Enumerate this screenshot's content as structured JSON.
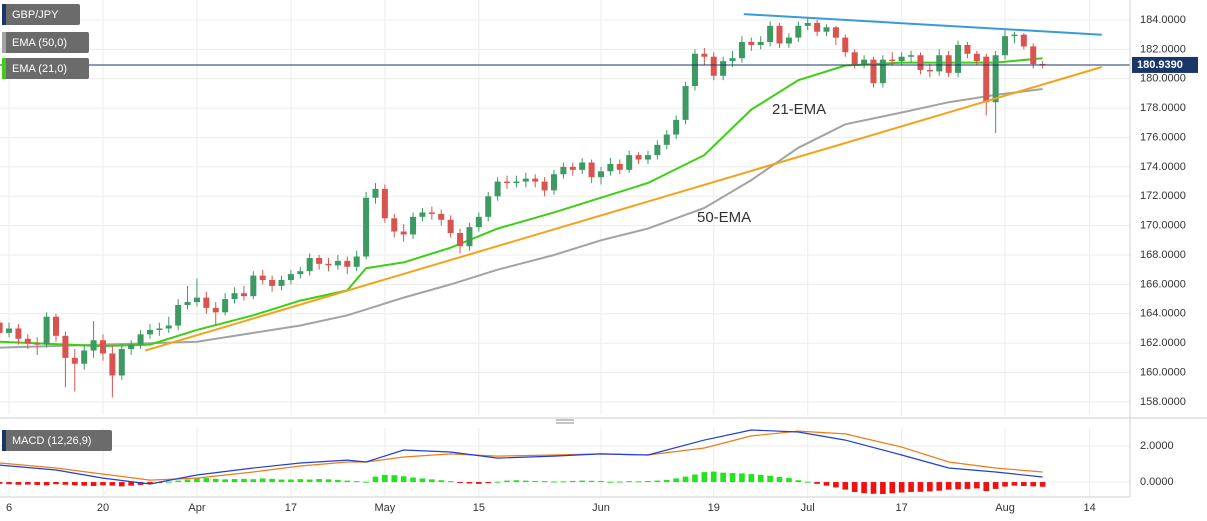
{
  "chart_data": {
    "type": "candlestick",
    "symbol": "GBP/JPY",
    "symbol_color": "#1a3668",
    "up_color": "#3c9a62",
    "down_color": "#d9534f",
    "x": [
      0,
      1,
      2,
      3,
      4,
      5,
      6,
      7,
      8,
      9,
      10,
      11,
      12,
      13,
      14,
      15,
      16,
      17,
      18,
      19,
      20,
      21,
      22,
      23,
      24,
      25,
      26,
      27,
      28,
      29,
      30,
      31,
      32,
      33,
      34,
      35,
      36,
      37,
      38,
      39,
      40,
      41,
      42,
      43,
      44,
      45,
      46,
      47,
      48,
      49,
      50,
      51,
      52,
      53,
      54,
      55,
      56,
      57,
      58,
      59,
      60,
      61,
      62,
      63,
      64,
      65,
      66,
      67,
      68,
      69,
      70,
      71,
      72,
      73,
      74,
      75,
      76,
      77,
      78,
      79,
      80,
      81,
      82,
      83,
      84,
      85,
      86,
      87,
      88,
      89,
      90,
      91,
      92,
      93,
      94,
      95,
      96,
      97,
      98,
      99,
      100,
      101,
      102,
      103,
      104,
      105,
      106,
      107,
      108,
      109,
      110,
      111
    ],
    "candles": [
      [
        163.4,
        163.6,
        162.3,
        162.7
      ],
      [
        162.7,
        163.4,
        162.4,
        163.0
      ],
      [
        163.0,
        163.3,
        161.9,
        162.3
      ],
      [
        162.3,
        162.6,
        161.6,
        162.0
      ],
      [
        162.0,
        162.4,
        161.2,
        161.9
      ],
      [
        161.9,
        164.1,
        161.7,
        163.8
      ],
      [
        163.8,
        164.0,
        162.1,
        162.5
      ],
      [
        162.5,
        162.8,
        159.0,
        161.0
      ],
      [
        161.0,
        161.6,
        158.7,
        160.6
      ],
      [
        160.6,
        161.9,
        160.2,
        161.5
      ],
      [
        161.5,
        163.5,
        161.0,
        162.2
      ],
      [
        162.2,
        162.6,
        160.8,
        161.3
      ],
      [
        161.3,
        161.8,
        158.3,
        159.8
      ],
      [
        159.8,
        161.9,
        159.5,
        161.6
      ],
      [
        161.6,
        162.2,
        161.2,
        161.9
      ],
      [
        161.9,
        162.9,
        161.6,
        162.6
      ],
      [
        162.6,
        163.3,
        162.3,
        162.9
      ],
      [
        162.9,
        163.4,
        162.5,
        163.0
      ],
      [
        163.0,
        163.8,
        162.7,
        163.2
      ],
      [
        163.2,
        165.0,
        162.9,
        164.6
      ],
      [
        164.6,
        165.9,
        164.3,
        164.8
      ],
      [
        164.8,
        166.4,
        164.5,
        165.1
      ],
      [
        165.1,
        165.5,
        164.0,
        164.4
      ],
      [
        164.4,
        164.8,
        163.2,
        164.1
      ],
      [
        164.1,
        165.4,
        163.9,
        165.0
      ],
      [
        165.0,
        165.8,
        164.7,
        165.4
      ],
      [
        165.4,
        165.9,
        164.9,
        165.2
      ],
      [
        165.2,
        166.9,
        165.0,
        166.6
      ],
      [
        166.6,
        167.0,
        166.0,
        166.3
      ],
      [
        166.3,
        166.6,
        165.5,
        165.9
      ],
      [
        165.9,
        166.6,
        165.6,
        166.3
      ],
      [
        166.3,
        167.0,
        166.0,
        166.7
      ],
      [
        166.7,
        167.2,
        166.4,
        166.9
      ],
      [
        166.9,
        168.1,
        166.6,
        167.8
      ],
      [
        167.8,
        168.0,
        167.0,
        167.4
      ],
      [
        167.4,
        167.8,
        166.9,
        167.3
      ],
      [
        167.3,
        168.0,
        167.0,
        167.6
      ],
      [
        167.6,
        167.9,
        166.7,
        167.2
      ],
      [
        167.2,
        168.3,
        166.9,
        167.9
      ],
      [
        167.9,
        172.3,
        167.7,
        171.9
      ],
      [
        171.9,
        172.9,
        171.5,
        172.5
      ],
      [
        172.5,
        172.8,
        170.2,
        170.5
      ],
      [
        170.5,
        170.8,
        169.2,
        169.6
      ],
      [
        169.6,
        170.1,
        168.9,
        169.4
      ],
      [
        169.4,
        170.9,
        169.1,
        170.6
      ],
      [
        170.6,
        171.2,
        170.3,
        170.9
      ],
      [
        170.9,
        171.3,
        170.4,
        170.8
      ],
      [
        170.8,
        171.1,
        170.0,
        170.4
      ],
      [
        170.4,
        170.7,
        169.2,
        169.5
      ],
      [
        169.5,
        169.8,
        168.1,
        168.6
      ],
      [
        168.6,
        170.2,
        168.3,
        169.9
      ],
      [
        169.9,
        170.9,
        169.6,
        170.6
      ],
      [
        170.6,
        172.3,
        170.3,
        172.0
      ],
      [
        172.0,
        173.3,
        171.7,
        173.0
      ],
      [
        173.0,
        173.4,
        172.5,
        172.9
      ],
      [
        172.9,
        173.4,
        172.6,
        173.0
      ],
      [
        173.0,
        173.6,
        172.6,
        173.2
      ],
      [
        173.2,
        173.5,
        172.6,
        173.0
      ],
      [
        173.0,
        173.3,
        172.0,
        172.4
      ],
      [
        172.4,
        173.8,
        172.1,
        173.5
      ],
      [
        173.5,
        174.3,
        173.2,
        174.0
      ],
      [
        174.0,
        174.3,
        173.4,
        173.8
      ],
      [
        173.8,
        174.6,
        173.5,
        174.3
      ],
      [
        174.3,
        174.5,
        172.9,
        173.3
      ],
      [
        173.3,
        174.0,
        172.8,
        173.7
      ],
      [
        173.7,
        174.6,
        173.4,
        174.2
      ],
      [
        174.2,
        174.5,
        173.5,
        173.8
      ],
      [
        173.8,
        175.1,
        173.6,
        174.8
      ],
      [
        174.8,
        175.0,
        174.2,
        174.5
      ],
      [
        174.5,
        175.1,
        174.2,
        174.8
      ],
      [
        174.8,
        175.8,
        174.5,
        175.5
      ],
      [
        175.5,
        176.5,
        175.2,
        176.2
      ],
      [
        176.2,
        177.5,
        175.9,
        177.2
      ],
      [
        177.2,
        179.8,
        176.9,
        179.5
      ],
      [
        179.5,
        182.0,
        179.2,
        181.7
      ],
      [
        181.7,
        182.1,
        180.9,
        181.5
      ],
      [
        181.5,
        181.8,
        179.9,
        180.2
      ],
      [
        180.2,
        181.5,
        179.9,
        181.2
      ],
      [
        181.2,
        181.9,
        180.8,
        181.4
      ],
      [
        181.4,
        182.9,
        181.1,
        182.5
      ],
      [
        182.5,
        182.8,
        181.9,
        182.3
      ],
      [
        182.3,
        182.9,
        182.0,
        182.5
      ],
      [
        182.5,
        183.9,
        182.2,
        183.6
      ],
      [
        183.6,
        183.8,
        182.1,
        182.4
      ],
      [
        182.4,
        183.1,
        182.1,
        182.8
      ],
      [
        182.8,
        183.9,
        182.5,
        183.6
      ],
      [
        183.6,
        184.1,
        183.3,
        183.8
      ],
      [
        183.8,
        184.0,
        182.9,
        183.2
      ],
      [
        183.2,
        183.7,
        182.9,
        183.5
      ],
      [
        183.5,
        183.6,
        182.3,
        182.8
      ],
      [
        182.8,
        183.0,
        181.5,
        181.8
      ],
      [
        181.8,
        182.0,
        180.7,
        181.0
      ],
      [
        181.0,
        181.6,
        180.7,
        181.3
      ],
      [
        181.3,
        181.5,
        179.4,
        179.7
      ],
      [
        179.7,
        181.6,
        179.4,
        181.3
      ],
      [
        181.3,
        181.8,
        180.9,
        181.2
      ],
      [
        181.2,
        181.8,
        180.9,
        181.5
      ],
      [
        181.5,
        181.9,
        181.1,
        181.6
      ],
      [
        181.6,
        181.8,
        180.3,
        180.6
      ],
      [
        180.6,
        181.0,
        180.1,
        180.5
      ],
      [
        180.5,
        182.0,
        180.2,
        181.6
      ],
      [
        181.6,
        181.9,
        180.1,
        180.4
      ],
      [
        180.4,
        182.6,
        180.1,
        182.3
      ],
      [
        182.3,
        182.5,
        181.4,
        181.7
      ],
      [
        181.7,
        181.9,
        180.9,
        181.2
      ],
      [
        181.5,
        181.7,
        177.5,
        178.4
      ],
      [
        178.4,
        181.9,
        176.3,
        181.6
      ],
      [
        181.6,
        183.3,
        181.3,
        182.9
      ],
      [
        182.9,
        183.2,
        182.4,
        183.0
      ],
      [
        183.0,
        183.1,
        182.0,
        182.2
      ],
      [
        182.2,
        182.4,
        180.7,
        181.0
      ],
      [
        181.0,
        181.2,
        180.7,
        180.9
      ]
    ],
    "series": [
      {
        "name": "EMA (50,0)",
        "label": "50-EMA",
        "color": "#a3a3a3",
        "x": [
          0,
          11,
          16,
          21,
          27,
          32,
          37,
          39,
          43,
          48,
          53,
          59,
          64,
          69,
          75,
          80,
          85,
          90,
          96,
          101,
          106,
          111
        ],
        "values": [
          161.7,
          161.9,
          162.0,
          162.1,
          162.7,
          163.2,
          163.9,
          164.3,
          165.1,
          166.0,
          167.0,
          168.0,
          169.0,
          169.8,
          171.2,
          173.1,
          175.3,
          176.9,
          177.7,
          178.4,
          178.9,
          179.3
        ]
      },
      {
        "name": "EMA (21,0)",
        "label": "21-EMA",
        "color": "#3ccf12",
        "x": [
          0,
          11,
          16,
          21,
          27,
          32,
          37,
          39,
          43,
          48,
          53,
          59,
          64,
          69,
          75,
          80,
          85,
          90,
          96,
          101,
          106,
          111
        ],
        "values": [
          162.1,
          161.8,
          161.9,
          162.9,
          163.9,
          164.9,
          165.6,
          167.1,
          167.5,
          168.5,
          169.8,
          170.9,
          171.9,
          172.9,
          174.8,
          177.9,
          179.9,
          180.9,
          181.1,
          181.1,
          181.1,
          181.4
        ]
      }
    ],
    "trendlines": [
      {
        "color": "#f5a21b",
        "x": [
          15.5,
          117.3
        ],
        "values": [
          161.5,
          180.8
        ]
      },
      {
        "color": "#3a9ad9",
        "x": [
          79.2,
          117.3
        ],
        "values": [
          184.4,
          183.0
        ]
      }
    ],
    "last_price": {
      "value": 180.939,
      "label": "180.9390"
    },
    "last_price_color": "#1a3668",
    "xlim": [
      0.04,
      120.3
    ],
    "xticks": [
      {
        "value": 1,
        "label": "6"
      },
      {
        "value": 11,
        "label": "20"
      },
      {
        "value": 21,
        "label": "Apr"
      },
      {
        "value": 31,
        "label": "17"
      },
      {
        "value": 41,
        "label": "May"
      },
      {
        "value": 51,
        "label": "15"
      },
      {
        "value": 64,
        "label": "Jun"
      },
      {
        "value": 76,
        "label": "19"
      },
      {
        "value": 86,
        "label": "Jul"
      },
      {
        "value": 96,
        "label": "17"
      },
      {
        "value": 107,
        "label": "Aug"
      },
      {
        "value": 116,
        "label": "14"
      }
    ],
    "ylim": [
      157.11,
      185.36
    ],
    "yticks": [
      {
        "value": 158,
        "label": "158.0000"
      },
      {
        "value": 160,
        "label": "160.0000"
      },
      {
        "value": 162,
        "label": "162.0000"
      },
      {
        "value": 164,
        "label": "164.0000"
      },
      {
        "value": 166,
        "label": "166.0000"
      },
      {
        "value": 168,
        "label": "168.0000"
      },
      {
        "value": 170,
        "label": "170.0000"
      },
      {
        "value": 172,
        "label": "172.0000"
      },
      {
        "value": 174,
        "label": "174.0000"
      },
      {
        "value": 176,
        "label": "176.0000"
      },
      {
        "value": 178,
        "label": "178.0000"
      },
      {
        "value": 180,
        "label": "180.0000"
      },
      {
        "value": 182,
        "label": "182.0000"
      },
      {
        "value": 184,
        "label": "184.0000"
      }
    ],
    "grid": true,
    "macd": {
      "name": "MACD (12,26,9)",
      "color": "#1a3668",
      "ylim": [
        -0.83,
        3.0
      ],
      "yticks": [
        {
          "value": 0,
          "label": "0.0000"
        },
        {
          "value": 2,
          "label": "2.0000"
        }
      ],
      "x": [
        0,
        6,
        11,
        16,
        21,
        27,
        32,
        37,
        39,
        43,
        48,
        53,
        59,
        64,
        69,
        75,
        80,
        85,
        90,
        96,
        101,
        106,
        111
      ],
      "macd_line": {
        "color": "#1f3fd6",
        "values": [
          0.94,
          0.67,
          0.22,
          -0.11,
          0.39,
          0.78,
          1.06,
          1.22,
          1.11,
          1.78,
          1.67,
          1.33,
          1.44,
          1.56,
          1.5,
          2.33,
          2.89,
          2.78,
          2.33,
          1.5,
          0.78,
          0.56,
          0.28
        ]
      },
      "signal_line": {
        "color": "#f07a1a",
        "values": [
          1.06,
          0.78,
          0.44,
          0.11,
          0.22,
          0.56,
          0.89,
          1.11,
          1.11,
          1.39,
          1.56,
          1.44,
          1.5,
          1.56,
          1.5,
          1.89,
          2.56,
          2.83,
          2.67,
          1.94,
          1.11,
          0.78,
          0.56
        ]
      },
      "histogram": {
        "pos_color": "#22e51c",
        "neg_color": "#f01010",
        "values": [
          -0.1,
          -0.12,
          -0.15,
          -0.14,
          -0.16,
          -0.18,
          -0.12,
          -0.15,
          -0.18,
          -0.2,
          -0.22,
          -0.18,
          -0.2,
          -0.24,
          -0.2,
          -0.16,
          -0.1,
          -0.05,
          0.02,
          0.08,
          0.14,
          0.2,
          0.22,
          0.18,
          0.15,
          0.17,
          0.18,
          0.16,
          0.2,
          0.18,
          0.14,
          0.14,
          0.16,
          0.14,
          0.17,
          0.15,
          0.12,
          0.08,
          0.05,
          0.02,
          0.3,
          0.4,
          0.38,
          0.32,
          0.25,
          0.2,
          0.15,
          0.1,
          0.05,
          -0.02,
          -0.08,
          -0.1,
          -0.06,
          0.02,
          0.08,
          0.1,
          0.08,
          0.06,
          0.05,
          0.03,
          0.04,
          0.06,
          0.08,
          0.07,
          0.06,
          0.02,
          0.03,
          0.05,
          0.04,
          0.06,
          0.08,
          0.12,
          0.2,
          0.3,
          0.42,
          0.55,
          0.58,
          0.52,
          0.5,
          0.48,
          0.44,
          0.4,
          0.35,
          0.28,
          0.22,
          0.1,
          0.02,
          -0.1,
          -0.2,
          -0.3,
          -0.42,
          -0.55,
          -0.62,
          -0.65,
          -0.66,
          -0.62,
          -0.58,
          -0.55,
          -0.54,
          -0.52,
          -0.48,
          -0.42,
          -0.4,
          -0.38,
          -0.35,
          -0.5,
          -0.38,
          -0.25,
          -0.2,
          -0.22,
          -0.24,
          -0.26
        ]
      }
    }
  }
}
